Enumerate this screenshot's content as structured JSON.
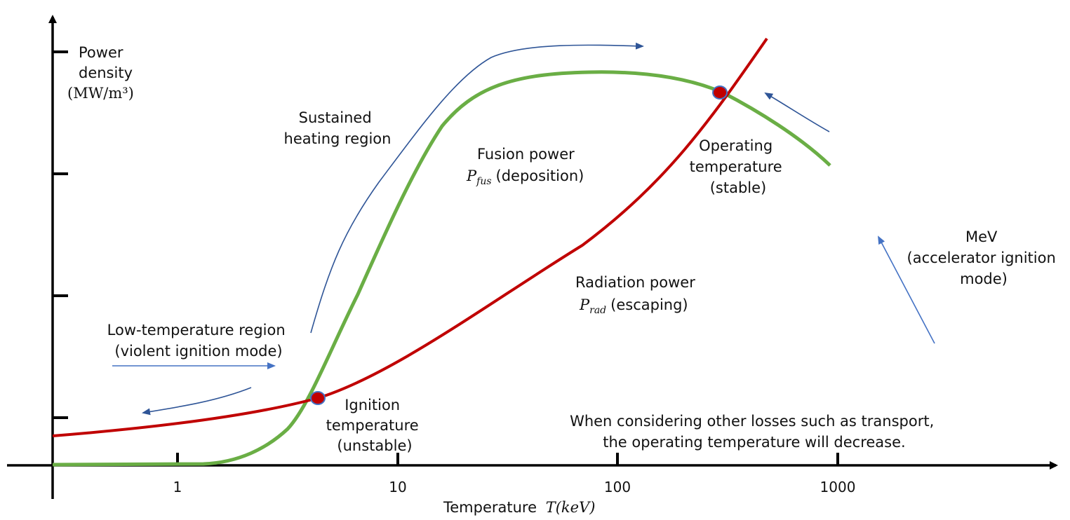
{
  "chart_data": {
    "type": "line",
    "title": "",
    "xscale": "log",
    "xlabel": "Temperature",
    "xlabel_symbol": "T(keV)",
    "ylabel_lines": [
      "Power",
      "density"
    ],
    "ylabel_unit": "(MW/m³)",
    "x_ticks": [
      "1",
      "10",
      "100",
      "1000"
    ],
    "series": [
      {
        "name": "Fusion power P_fus (deposition)",
        "color": "#6aae45"
      },
      {
        "name": "Radiation power P_rad (escaping)",
        "color": "#c00000"
      }
    ],
    "points": [
      {
        "name": "Ignition temperature (unstable)",
        "x_approx_keV": 4.5
      },
      {
        "name": "Operating temperature (stable)",
        "x_approx_keV": 290
      }
    ]
  },
  "annotations": {
    "sustained": [
      "Sustained",
      "heating region"
    ],
    "fusion_title": "Fusion power",
    "fusion_symbol": "P",
    "fusion_sub": "fus",
    "fusion_desc": "(deposition)",
    "operating": [
      "Operating",
      "temperature",
      "(stable)"
    ],
    "mev": [
      "MeV",
      "(accelerator ignition",
      "mode)"
    ],
    "radiation_title": "Radiation power",
    "radiation_symbol": "P",
    "radiation_sub": "rad",
    "radiation_desc": "(escaping)",
    "lowtemp": [
      "Low-temperature region",
      "(violent ignition mode)"
    ],
    "ignition": [
      "Ignition",
      "temperature",
      "(unstable)"
    ],
    "note": [
      "When considering other losses such as transport,",
      "the operating temperature will decrease."
    ]
  },
  "colors": {
    "fusion": "#6aae45",
    "radiation": "#c00000",
    "arrow_dark": "#2f5597",
    "arrow_light": "#4472c4",
    "point_fill": "#c00000",
    "point_stroke": "#4472c4"
  }
}
